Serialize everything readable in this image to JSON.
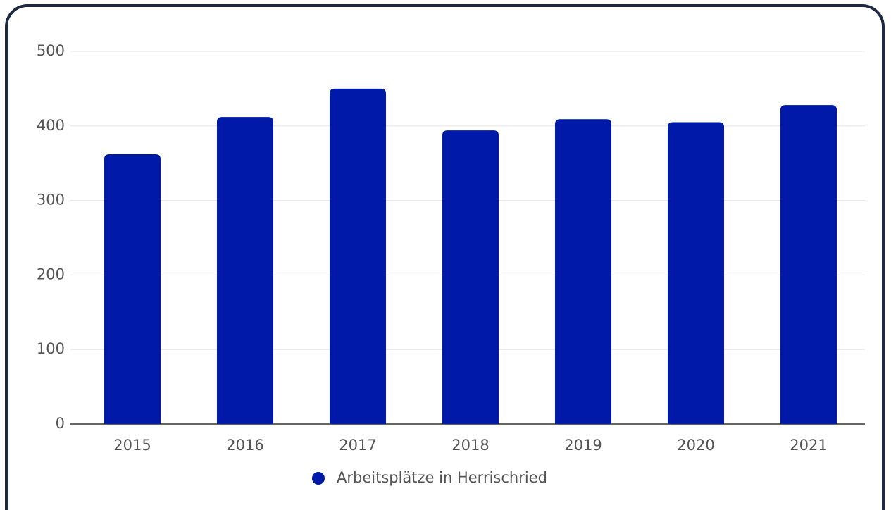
{
  "chart_data": {
    "type": "bar",
    "categories": [
      "2015",
      "2016",
      "2017",
      "2018",
      "2019",
      "2020",
      "2021"
    ],
    "series": [
      {
        "name": "Arbeitsplätze in Herrischried",
        "color": "#0019a8",
        "values": [
          362,
          412,
          450,
          394,
          409,
          405,
          428
        ]
      }
    ],
    "ylim": [
      0,
      500
    ],
    "yticks": [
      0,
      100,
      200,
      300,
      400,
      500
    ],
    "grid": true,
    "legend": "bottom"
  }
}
